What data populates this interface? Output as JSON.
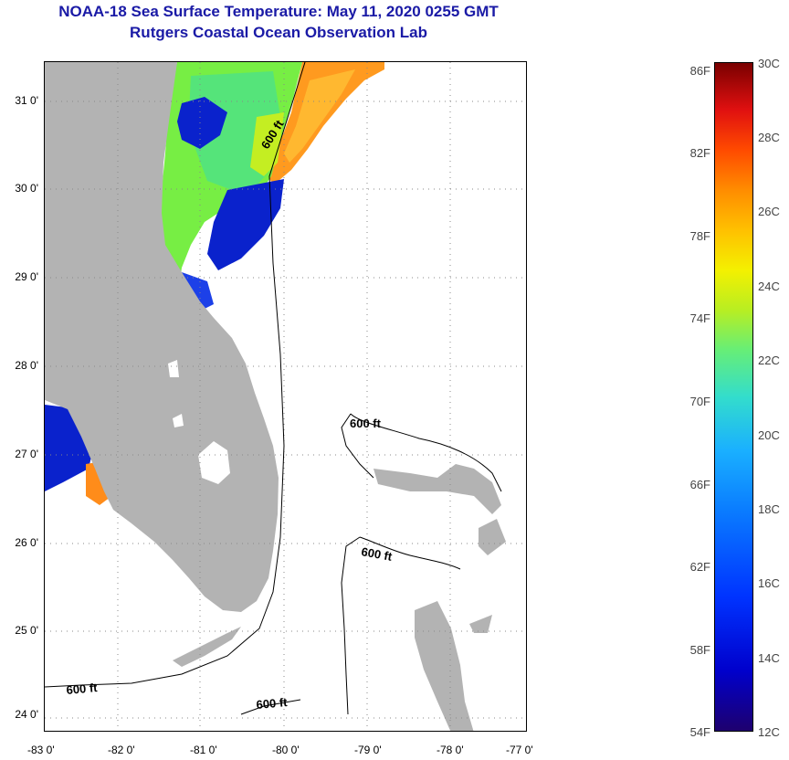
{
  "title": {
    "line1": "NOAA-18 Sea Surface Temperature:  May 11, 2020 0255 GMT",
    "line2": "Rutgers Coastal Ocean Observation Lab"
  },
  "map": {
    "lat_labels": [
      "31 0'",
      "30 0'",
      "29 0'",
      "28 0'",
      "27 0'",
      "26 0'",
      "25 0'",
      "24 0'"
    ],
    "lon_labels": [
      "-83 0'",
      "-82 0'",
      "-81 0'",
      "-80 0'",
      "-79 0'",
      "-78 0'",
      "-77 0'"
    ],
    "contour_label": "600 ft",
    "colors": {
      "land": "#b3b3b3",
      "water": "#ffffff",
      "contour": "#000000"
    }
  },
  "colorbar": {
    "fahrenheit_labels": [
      "86F",
      "82F",
      "78F",
      "74F",
      "70F",
      "66F",
      "62F",
      "58F",
      "54F"
    ],
    "celsius_labels": [
      "30C",
      "28C",
      "26C",
      "24C",
      "22C",
      "20C",
      "18C",
      "16C",
      "14C",
      "12C"
    ],
    "f_range": [
      54,
      86
    ],
    "c_range": [
      12,
      30
    ]
  }
}
